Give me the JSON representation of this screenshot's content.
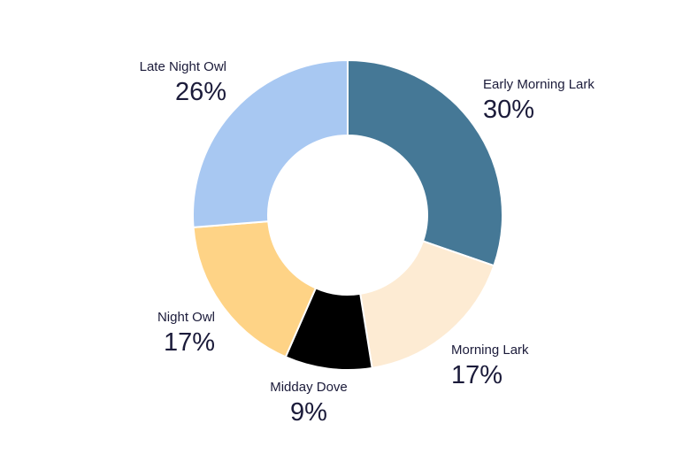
{
  "chart_data": {
    "type": "pie",
    "donut": true,
    "legend": "none",
    "slices": [
      {
        "label": "Early Morning Lark",
        "value": 30,
        "value_text": "30%",
        "color": "#457896"
      },
      {
        "label": "Morning Lark",
        "value": 17,
        "value_text": "17%",
        "color": "#fdebd3"
      },
      {
        "label": "Midday Dove",
        "value": 9,
        "value_text": "9%",
        "color": "#000000"
      },
      {
        "label": "Night Owl",
        "value": 17,
        "value_text": "17%",
        "color": "#fed386"
      },
      {
        "label": "Late Night Owl",
        "value": 26,
        "value_text": "26%",
        "color": "#a8c8f2"
      }
    ]
  }
}
